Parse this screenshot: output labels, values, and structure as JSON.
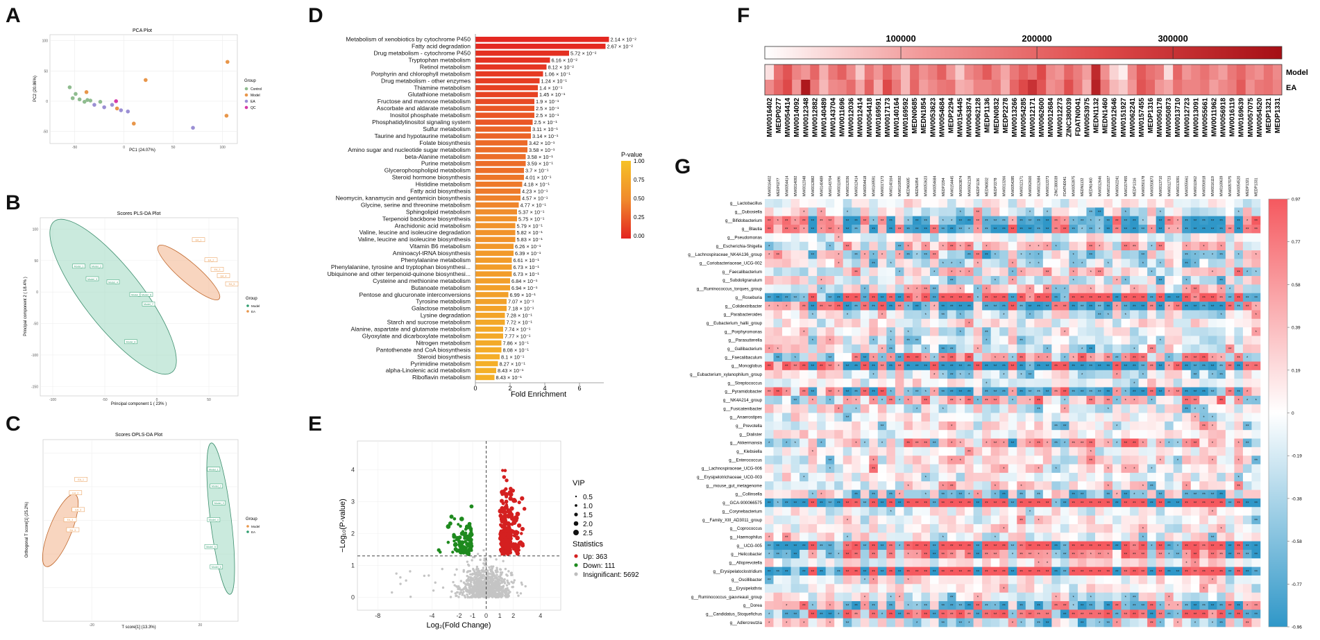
{
  "panels": {
    "A": {
      "letter": "A",
      "chart_type": "scatter",
      "title": "PCA Plot",
      "xlabel": "PC1 (24.07%)",
      "ylabel": "PC2 (20.86%)",
      "x_ticks": [
        -50,
        0,
        50,
        100
      ],
      "y_ticks": [
        -50,
        0,
        50,
        100
      ],
      "legend_title": "Group",
      "legend": [
        {
          "name": "Control",
          "color": "#8fbc8f"
        },
        {
          "name": "Model",
          "color": "#e8964a"
        },
        {
          "name": "EA",
          "color": "#9b8fd4"
        },
        {
          "name": "QC",
          "color": "#d63aa8"
        }
      ],
      "points": [
        {
          "group": "Control",
          "x": -55,
          "y": 23
        },
        {
          "group": "Control",
          "x": -49,
          "y": 12
        },
        {
          "group": "Control",
          "x": -52,
          "y": 5
        },
        {
          "group": "Control",
          "x": -45,
          "y": 3
        },
        {
          "group": "Control",
          "x": -40,
          "y": -1
        },
        {
          "group": "Control",
          "x": -34,
          "y": 1
        },
        {
          "group": "Control",
          "x": -24,
          "y": -1
        },
        {
          "group": "Control",
          "x": -37,
          "y": 2
        },
        {
          "group": "Model",
          "x": 105,
          "y": 65
        },
        {
          "group": "Model",
          "x": 22,
          "y": 35
        },
        {
          "group": "Model",
          "x": -38,
          "y": 15
        },
        {
          "group": "Model",
          "x": 104,
          "y": -24
        },
        {
          "group": "Model",
          "x": 10,
          "y": -37
        },
        {
          "group": "Model",
          "x": -7,
          "y": -12
        },
        {
          "group": "EA",
          "x": -20,
          "y": -10
        },
        {
          "group": "EA",
          "x": -30,
          "y": -6
        },
        {
          "group": "EA",
          "x": -12,
          "y": -6
        },
        {
          "group": "EA",
          "x": 4,
          "y": -17
        },
        {
          "group": "EA",
          "x": -3,
          "y": -15
        },
        {
          "group": "EA",
          "x": 70,
          "y": -44
        },
        {
          "group": "QC",
          "x": -8,
          "y": 0
        }
      ]
    },
    "B": {
      "letter": "B",
      "chart_type": "scatter",
      "title": "Scores PLS-DA Plot",
      "xlabel": "Principal component 1 ( 23% )",
      "ylabel": "Principal component 2 ( 18.4% )",
      "x_ticks": [
        -100,
        -50,
        0,
        50
      ],
      "y_ticks": [
        100,
        50,
        0,
        -50,
        -100,
        -150
      ],
      "legend_title": "Group",
      "legend": [
        {
          "name": "Model",
          "color": "#2e9d6e"
        },
        {
          "name": "EA",
          "color": "#e8964a"
        }
      ],
      "points": [
        {
          "group": "Model",
          "x": -75,
          "y": 40,
          "label": "Model_1"
        },
        {
          "group": "Model",
          "x": -58,
          "y": 40,
          "label": "Model_2"
        },
        {
          "group": "Model",
          "x": -62,
          "y": 20,
          "label": "Model_3"
        },
        {
          "group": "Model",
          "x": -42,
          "y": 15,
          "label": "Model_4"
        },
        {
          "group": "Model",
          "x": -20,
          "y": -5,
          "label": "Model_5"
        },
        {
          "group": "Model",
          "x": -10,
          "y": -5,
          "label": "Model_6"
        },
        {
          "group": "Model",
          "x": -8,
          "y": -20,
          "label": "Model_7"
        },
        {
          "group": "Model",
          "x": -25,
          "y": -80,
          "label": "Model_8"
        },
        {
          "group": "EA",
          "x": 40,
          "y": 82,
          "label": "EA_1"
        },
        {
          "group": "EA",
          "x": 52,
          "y": 50,
          "label": "EA_2"
        },
        {
          "group": "EA",
          "x": 58,
          "y": 35,
          "label": "EA_3"
        },
        {
          "group": "EA",
          "x": 64,
          "y": 25,
          "label": "EA_4"
        },
        {
          "group": "EA",
          "x": 72,
          "y": 12,
          "label": "EA_5"
        }
      ]
    },
    "C": {
      "letter": "C",
      "chart_type": "scatter",
      "title": "Scores OPLS-DA Plot",
      "xlabel": "T score[1] (13.3%)",
      "ylabel": "Orthogonal T score[1] (25.2%)",
      "x_ticks": [
        -20,
        20
      ],
      "legend_title": "Group",
      "legend": [
        {
          "name": "Model",
          "color": "#e8964a"
        },
        {
          "name": "EA",
          "color": "#2e9d6e"
        }
      ],
      "points": [
        {
          "group": "Model",
          "x": -24,
          "y": 12,
          "label": "EA_1"
        },
        {
          "group": "Model",
          "x": -26,
          "y": 8,
          "label": "EA_2"
        },
        {
          "group": "Model",
          "x": -25,
          "y": 3,
          "label": "EA_3"
        },
        {
          "group": "Model",
          "x": -28,
          "y": 0,
          "label": "EA_4"
        },
        {
          "group": "Model",
          "x": -27,
          "y": -3,
          "label": "EA_5"
        },
        {
          "group": "EA",
          "x": 25,
          "y": 15,
          "label": "Model_1"
        },
        {
          "group": "EA",
          "x": 26,
          "y": 10,
          "label": "Model_2"
        },
        {
          "group": "EA",
          "x": 27,
          "y": 5,
          "label": "Model_3"
        },
        {
          "group": "EA",
          "x": 25,
          "y": 0,
          "label": "Model_4"
        },
        {
          "group": "EA",
          "x": 24,
          "y": -8,
          "label": "Model_5"
        },
        {
          "group": "EA",
          "x": 26,
          "y": -14,
          "label": "Model_6"
        }
      ]
    },
    "D": {
      "letter": "D",
      "chart_type": "bar",
      "xlabel": "Fold Enrichment",
      "x_ticks": [
        0,
        2,
        4,
        6
      ],
      "xlim": [
        0,
        7.5
      ],
      "colorbar_title": "P-value",
      "colorbar_ticks": [
        "1.00",
        "0.75",
        "0.50",
        "0.25",
        "0.00"
      ],
      "categories": [
        "Metabolism of xenobiotics by cytochrome P450",
        "Fatty acid degradation",
        "Drug metabolism - cytochrome P450",
        "Tryptophan metabolism",
        "Retinol metabolism",
        "Porphyrin and chlorophyll metabolism",
        "Drug metabolism - other enzymes",
        "Thiamine metabolism",
        "Glutathione metabolism",
        "Fructose and mannose metabolism",
        "Ascorbate and aldarate metabolism",
        "Inositol phosphate metabolism",
        "Phosphatidylinositol signaling system",
        "Sulfur metabolism",
        "Taurine and hypotaurine metabolism",
        "Folate biosynthesis",
        "Amino sugar and nucleotide sugar metabolism",
        "beta-Alanine metabolism",
        "Purine metabolism",
        "Glycerophospholipid metabolism",
        "Steroid hormone biosynthesis",
        "Histidine metabolism",
        "Fatty acid biosynthesis",
        "Neomycin, kanamycin and gentamicin biosynthesis",
        "Glycine, serine and threonine metabolism",
        "Sphingolipid metabolism",
        "Terpenoid backbone biosynthesis",
        "Arachidonic acid metabolism",
        "Valine, leucine and isoleucine degradation",
        "Valine, leucine and isoleucine biosynthesis",
        "Vitamin B6 metabolism",
        "Aminoacyl-tRNA biosynthesis",
        "Phenylalanine metabolism",
        "Phenylalanine, tyrosine and tryptophan biosynthesi...",
        "Ubiquinone and other terpenoid-quinone biosynthesi...",
        "Cysteine and methionine metabolism",
        "Butanoate metabolism",
        "Pentose and glucuronate interconversions",
        "Tyrosine metabolism",
        "Galactose metabolism",
        "Lysine degradation",
        "Starch and sucrose metabolism",
        "Alanine, aspartate and glutamate metabolism",
        "Glyoxylate and dicarboxylate metabolism",
        "Nitrogen metabolism",
        "Pantothenate and CoA biosynthesis",
        "Steroid biosynthesis",
        "Pyrimidine metabolism",
        "alpha-Linolenic acid metabolism",
        "Riboflavin metabolism"
      ],
      "values": [
        7.7,
        7.5,
        5.4,
        4.3,
        4.1,
        3.9,
        3.7,
        3.6,
        3.6,
        3.4,
        3.4,
        3.4,
        3.3,
        3.2,
        3.2,
        3.0,
        3.0,
        2.9,
        2.9,
        2.8,
        2.8,
        2.7,
        2.6,
        2.6,
        2.5,
        2.4,
        2.4,
        2.3,
        2.3,
        2.3,
        2.2,
        2.2,
        2.1,
        2.1,
        2.1,
        2.0,
        2.0,
        1.9,
        1.8,
        1.8,
        1.7,
        1.7,
        1.6,
        1.6,
        1.5,
        1.5,
        1.4,
        1.3,
        1.2,
        1.1
      ],
      "pvalues": [
        0.0214,
        0.0267,
        0.0572,
        0.0616,
        0.0812,
        0.106,
        0.124,
        0.14,
        0.145,
        0.19,
        0.25,
        0.25,
        0.25,
        0.311,
        0.314,
        0.342,
        0.358,
        0.358,
        0.359,
        0.37,
        0.401,
        0.418,
        0.423,
        0.457,
        0.477,
        0.537,
        0.575,
        0.579,
        0.582,
        0.583,
        0.626,
        0.639,
        0.661,
        0.673,
        0.673,
        0.684,
        0.694,
        0.699,
        0.707,
        0.718,
        0.728,
        0.772,
        0.774,
        0.777,
        0.786,
        0.808,
        0.81,
        0.827,
        0.843,
        0.843
      ],
      "plabels": [
        "2.14 × 10⁻²",
        "2.67 × 10⁻²",
        "5.72 × 10⁻²",
        "6.16 × 10⁻²",
        "8.12 × 10⁻²",
        "1.06 × 10⁻¹",
        "1.24 × 10⁻¹",
        "1.4 × 10⁻¹",
        "1.45 × 10⁻¹",
        "1.9 × 10⁻¹",
        "2.5 × 10⁻¹",
        "2.5 × 10⁻¹",
        "2.5 × 10⁻¹",
        "3.11 × 10⁻¹",
        "3.14 × 10⁻¹",
        "3.42 × 10⁻¹",
        "3.58 × 10⁻¹",
        "3.58 × 10⁻¹",
        "3.59 × 10⁻¹",
        "3.7 × 10⁻¹",
        "4.01 × 10⁻¹",
        "4.18 × 10⁻¹",
        "4.23 × 10⁻¹",
        "4.57 × 10⁻¹",
        "4.77 × 10⁻¹",
        "5.37 × 10⁻¹",
        "5.75 × 10⁻¹",
        "5.79 × 10⁻¹",
        "5.82 × 10⁻¹",
        "5.83 × 10⁻¹",
        "6.26 × 10⁻¹",
        "6.39 × 10⁻¹",
        "6.61 × 10⁻¹",
        "6.73 × 10⁻¹",
        "6.73 × 10⁻¹",
        "6.84 × 10⁻¹",
        "6.94 × 10⁻¹",
        "6.99 × 10⁻¹",
        "7.07 × 10⁻¹",
        "7.18 × 10⁻¹",
        "7.28 × 10⁻¹",
        "7.72 × 10⁻¹",
        "7.74 × 10⁻¹",
        "7.77 × 10⁻¹",
        "7.86 × 10⁻¹",
        "8.08 × 10⁻¹",
        "8.1 × 10⁻¹",
        "8.27 × 10⁻¹",
        "8.43 × 10⁻¹",
        "8.43 × 10⁻¹"
      ]
    },
    "E": {
      "letter": "E",
      "chart_type": "scatter",
      "xlabel": "Log₂(Fold Change)",
      "ylabel": "−Log₁₀(P-value)",
      "x_ticks": [
        -8,
        -4,
        -2,
        -1,
        0,
        1,
        2,
        4
      ],
      "y_ticks": [
        0,
        1,
        2,
        3,
        4
      ],
      "xlim": [
        -9.5,
        5.5
      ],
      "ylim": [
        -0.4,
        4.9
      ],
      "vip_title": "VIP",
      "vip_sizes": [
        "0.5",
        "1.0",
        "1.5",
        "2.0",
        "2.5"
      ],
      "stats_title": "Statistics",
      "stats": [
        {
          "label": "Up: 363",
          "color": "#d42020"
        },
        {
          "label": "Down: 111",
          "color": "#1e8a1e"
        },
        {
          "label": "Insignificant: 5692",
          "color": "#bdbdbd"
        }
      ],
      "summary": {
        "up": 363,
        "down": 111,
        "insignificant": 5692,
        "p_threshold_log10": 1.3,
        "fc_threshold_log2": [
          -1,
          1
        ]
      }
    },
    "F": {
      "letter": "F",
      "chart_type": "heatmap",
      "colorbar_ticks": [
        "100000",
        "200000",
        "300000"
      ],
      "colorbar_range": [
        0,
        380000
      ],
      "rows": [
        "Model",
        "EA"
      ],
      "columns": [
        "MW0016402",
        "MEDP0277",
        "MW0054414",
        "MW0014092",
        "MW0012348",
        "MW0012882",
        "MW0140489",
        "MW0143704",
        "MW0011696",
        "MW0012036",
        "MW0012414",
        "MW0054418",
        "MW0169591",
        "MW0017173",
        "MW0140164",
        "MW0169592",
        "MEDN0685",
        "MEDN1854",
        "MW0053623",
        "MW0054684",
        "MEDP2294",
        "MW0154445",
        "MW0063874",
        "MW0062128",
        "MEDP1136",
        "MEDN0832",
        "MEDP2278",
        "MW0013266",
        "MW0054285",
        "MW0012171",
        "MW0062600",
        "MW0012684",
        "MW0012273",
        "ZINC380039",
        "FDATN0041",
        "MW0053975",
        "MEDN1132",
        "MEDN1460",
        "MW0012646",
        "MW0151927",
        "MW0062241",
        "MW0157455",
        "MEDP1316",
        "MW0050178",
        "MW0050873",
        "MW0013710",
        "MW0012723",
        "MW0013091",
        "MW0055661",
        "MW0011962",
        "MW0056918",
        "MW0016119",
        "MW0169639",
        "MW0057075",
        "MW0054520",
        "MEDP1321",
        "MEDP1331"
      ],
      "model_values": [
        35000,
        180000,
        230000,
        150000,
        120000,
        200000,
        90000,
        170000,
        210000,
        140000,
        60000,
        170000,
        120000,
        200000,
        140000,
        80000,
        190000,
        130000,
        160000,
        210000,
        120000,
        60000,
        140000,
        170000,
        220000,
        150000,
        100000,
        170000,
        210000,
        180000,
        250000,
        140000,
        120000,
        200000,
        160000,
        110000,
        320000,
        130000,
        50000,
        20000,
        140000,
        220000,
        180000,
        160000,
        40000,
        200000,
        120000,
        150000,
        180000,
        140000,
        110000,
        170000,
        200000,
        150000,
        130000,
        180000,
        140000
      ],
      "ea_values": [
        140000,
        200000,
        250000,
        120000,
        360000,
        170000,
        80000,
        140000,
        150000,
        190000,
        100000,
        210000,
        90000,
        250000,
        170000,
        80000,
        200000,
        110000,
        140000,
        170000,
        180000,
        90000,
        100000,
        150000,
        150000,
        170000,
        90000,
        200000,
        250000,
        300000,
        230000,
        130000,
        150000,
        240000,
        170000,
        90000,
        340000,
        170000,
        80000,
        60000,
        120000,
        230000,
        200000,
        120000,
        100000,
        180000,
        150000,
        150000,
        170000,
        110000,
        140000,
        160000,
        220000,
        130000,
        170000,
        180000,
        150000
      ]
    },
    "G": {
      "letter": "G",
      "chart_type": "heatmap",
      "colorbar_ticks": [
        "0.97",
        "0.77",
        "0.58",
        "0.39",
        "0.19",
        "0",
        "-0.19",
        "-0.38",
        "-0.58",
        "-0.77",
        "-0.96"
      ],
      "value_range": [
        -0.96,
        0.97
      ],
      "rows": [
        "g__Lactobacillus",
        "g__Dubosiella",
        "g__Bifidobacterium",
        "g__Blautia",
        "g__Pseudomonas",
        "g__Escherichia-Shigella",
        "g__Lachnospiraceae_NK4A136_group",
        "g__Coriobacteriaceae_UCG-002",
        "g__Faecalibacterium",
        "g__Subdoligranulum",
        "g__Ruminococcus_torques_group",
        "g__Roseburia",
        "g__Colidextribacter",
        "g__Parabacteroides",
        "g__Eubacterium_hallii_group",
        "g__Porphyromonas",
        "g__Parasutterella",
        "g__Gallibacterium",
        "g__Faecalibaculum",
        "g__Monoglobus",
        "g__Eubacterium_xylanophilum_group",
        "g__Streptococcus",
        "g__Pyramidobacter",
        "g__NK4A214_group",
        "g__Fusicatenibacter",
        "g__Anaerostipes",
        "g__Prevotella",
        "g__Dialister",
        "g__Akkermansia",
        "g__Klebsiella",
        "g__Enterococcus",
        "g__Lachnospiraceae_UCG-006",
        "g__Erysipelotrichaceae_UCG-003",
        "g__mouse_gut_metagenome",
        "g__Collinsella",
        "g__GCA-900066575",
        "g__Corynebacterium",
        "g__Family_XIII_AD3011_group",
        "g__Coprococcus",
        "g__Haemophilus",
        "g__UCG-005",
        "g__Helicobacter",
        "g__Alloprevotella",
        "g__Erysipelatoclostridium",
        "g__Oscillibacter",
        "g__Erysipelothrix",
        "g__Ruminococcus_gauvreauii_group",
        "g__Dorea",
        "g__Candidatus_Stoquefichus",
        "g__Adlercreutzia"
      ],
      "columns": [
        "MW0016402",
        "MEDP0277",
        "MW0054414",
        "MW0014092",
        "MW0012348",
        "MW0012882",
        "MW0140489",
        "MW0143704",
        "MW0011696",
        "MW0012036",
        "MW0012414",
        "MW0054418",
        "MW0169591",
        "MW0017173",
        "MW0140164",
        "MW0169592",
        "MEDN0685",
        "MEDN1854",
        "MW0053623",
        "MW0054684",
        "MEDP2294",
        "MW0154445",
        "MW0063874",
        "MW0062128",
        "MEDP1136",
        "MEDN0832",
        "MEDP2278",
        "MW0013266",
        "MW0054285",
        "MW0012171",
        "MW0062600",
        "MW0012684",
        "MW0012273",
        "ZINC380039",
        "FDATN0041",
        "MW0053975",
        "MEDN1132",
        "MEDN1460",
        "MW0012646",
        "MW0151927",
        "MW0062241",
        "MW0157455",
        "MEDP1316",
        "MW0050178",
        "MW0050873",
        "MW0013710",
        "MW0012723",
        "MW0013091",
        "MW0055661",
        "MW0011962",
        "MW0056918",
        "MW0016119",
        "MW0169639",
        "MW0057075",
        "MW0054520",
        "MEDP1321",
        "MEDP1331"
      ],
      "note": "Correlation matrix: 50 genera x 57 metabolites, Spearman r in [-0.96, 0.97]; cells marked with * / ** for significance."
    }
  }
}
